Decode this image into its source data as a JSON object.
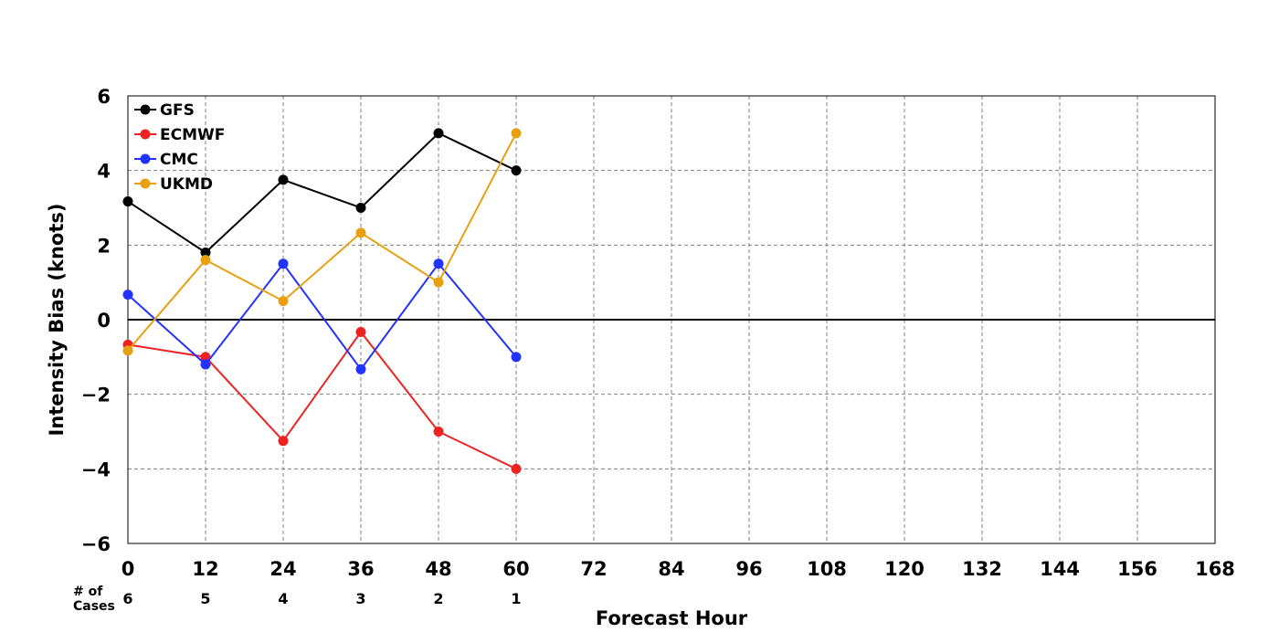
{
  "chart_data": {
    "type": "line",
    "xlabel": "Forecast Hour",
    "ylabel": "Intensity Bias (knots)",
    "xlim": [
      0,
      168
    ],
    "ylim": [
      -6,
      6
    ],
    "x_ticks": [
      0,
      12,
      24,
      36,
      48,
      60,
      72,
      84,
      96,
      108,
      120,
      132,
      144,
      156,
      168
    ],
    "x_tick_labels": [
      "0",
      "12",
      "24",
      "36",
      "48",
      "60",
      "72",
      "84",
      "96",
      "108",
      "120",
      "132",
      "144",
      "156",
      "168"
    ],
    "y_ticks": [
      -6,
      -4,
      -2,
      0,
      2,
      4,
      6
    ],
    "y_tick_labels": [
      "−6",
      "−4",
      "−2",
      "0",
      "2",
      "4",
      "6"
    ],
    "grid": true,
    "grid_style": "dashed",
    "zero_line": true,
    "legend_position": "top-left",
    "cases_label_line1": "# of",
    "cases_label_line2": "Cases",
    "cases": [
      {
        "x": 0,
        "count": "6"
      },
      {
        "x": 12,
        "count": "5"
      },
      {
        "x": 24,
        "count": "4"
      },
      {
        "x": 36,
        "count": "3"
      },
      {
        "x": 48,
        "count": "2"
      },
      {
        "x": 60,
        "count": "1"
      }
    ],
    "x": [
      0,
      12,
      24,
      36,
      48,
      60
    ],
    "series": [
      {
        "name": "GFS",
        "color": "#000000",
        "values": [
          3.17,
          1.8,
          3.75,
          3.0,
          5.0,
          4.0
        ]
      },
      {
        "name": "ECMWF",
        "color": "#ee2222",
        "values": [
          -0.67,
          -1.0,
          -3.25,
          -0.33,
          -3.0,
          -4.0
        ]
      },
      {
        "name": "CMC",
        "color": "#2233ff",
        "values": [
          0.67,
          -1.2,
          1.5,
          -1.33,
          1.5,
          -1.0
        ]
      },
      {
        "name": "UKMD",
        "color": "#e8a010",
        "values": [
          -0.83,
          1.6,
          0.5,
          2.33,
          1.0,
          5.0
        ]
      }
    ]
  }
}
